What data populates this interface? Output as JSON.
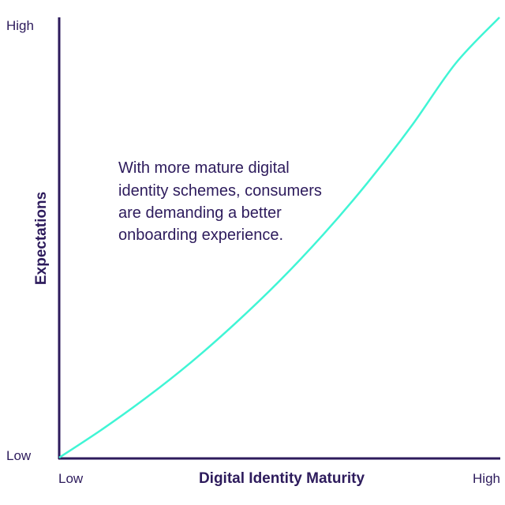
{
  "chart_data": {
    "type": "line",
    "title": "",
    "xlabel": "Digital Identity Maturity",
    "ylabel": "Expectations",
    "x_ticks": [
      "Low",
      "High"
    ],
    "y_ticks": [
      "Low",
      "High"
    ],
    "xlim": [
      0,
      1
    ],
    "ylim": [
      0,
      1
    ],
    "grid": false,
    "series": [
      {
        "color": "#40f5d5",
        "x": [
          0,
          0.1,
          0.2,
          0.3,
          0.4,
          0.5,
          0.6,
          0.7,
          0.8,
          0.9,
          1.0
        ],
        "y": [
          0,
          0.066,
          0.138,
          0.217,
          0.305,
          0.401,
          0.507,
          0.624,
          0.753,
          0.895,
          1.0
        ]
      }
    ],
    "annotation": {
      "lines": [
        "With more mature digital",
        "identity schemes, consumers",
        "are demanding a better",
        "onboarding experience."
      ]
    },
    "colors": {
      "axis": "#2d1b5c",
      "text": "#2d1b5c",
      "curve": "#40f5d5"
    }
  }
}
